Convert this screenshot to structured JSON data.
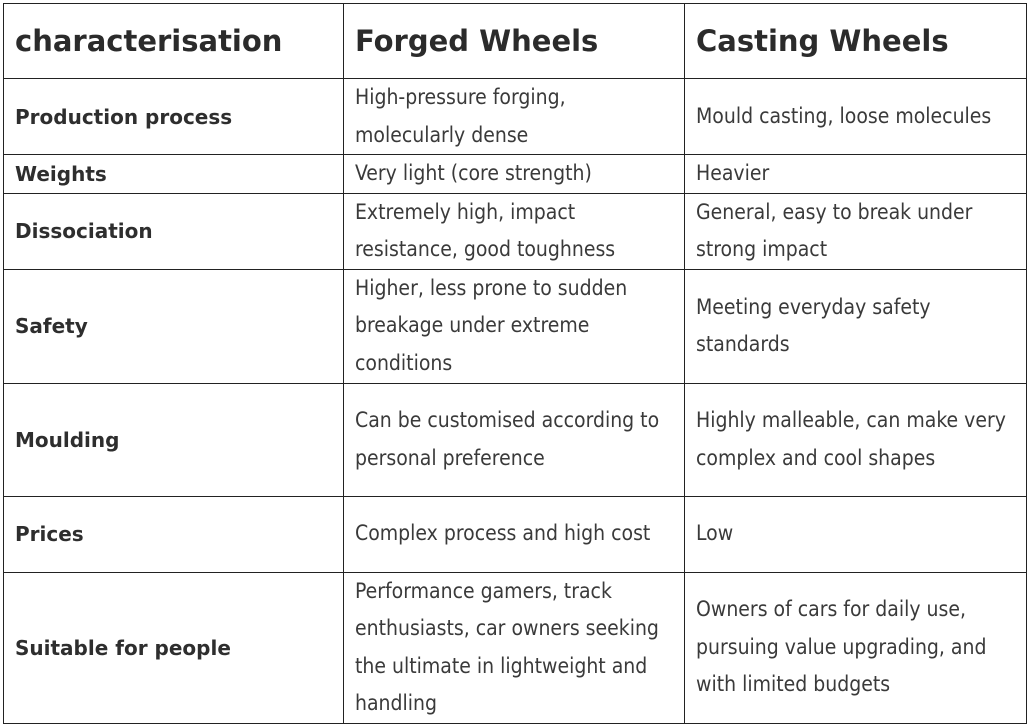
{
  "table": {
    "headers": [
      "characterisation",
      "Forged Wheels",
      "Casting Wheels"
    ],
    "rows": [
      {
        "label": "Production process",
        "forged": "High-pressure forging, molecularly dense",
        "casting": "Mould casting, loose molecules"
      },
      {
        "label": "Weights",
        "forged": "Very light (core strength)",
        "casting": "Heavier"
      },
      {
        "label": "Dissociation",
        "forged": "Extremely high, impact resistance, good toughness",
        "casting": "General, easy to break under strong impact"
      },
      {
        "label": "Safety",
        "forged": "Higher, less prone to sudden breakage under extreme conditions",
        "casting": "Meeting everyday safety standards"
      },
      {
        "label": "Moulding",
        "forged": "Can be customised according to personal preference",
        "casting": "Highly malleable, can make very complex and cool shapes"
      },
      {
        "label": "Prices",
        "forged": "Complex process and high cost",
        "casting": "Low"
      },
      {
        "label": "Suitable for people",
        "forged": "Performance gamers, track enthusiasts, car owners seeking the ultimate in lightweight and handling",
        "casting": "Owners of cars for daily use, pursuing value upgrading, and with limited budgets"
      }
    ]
  }
}
